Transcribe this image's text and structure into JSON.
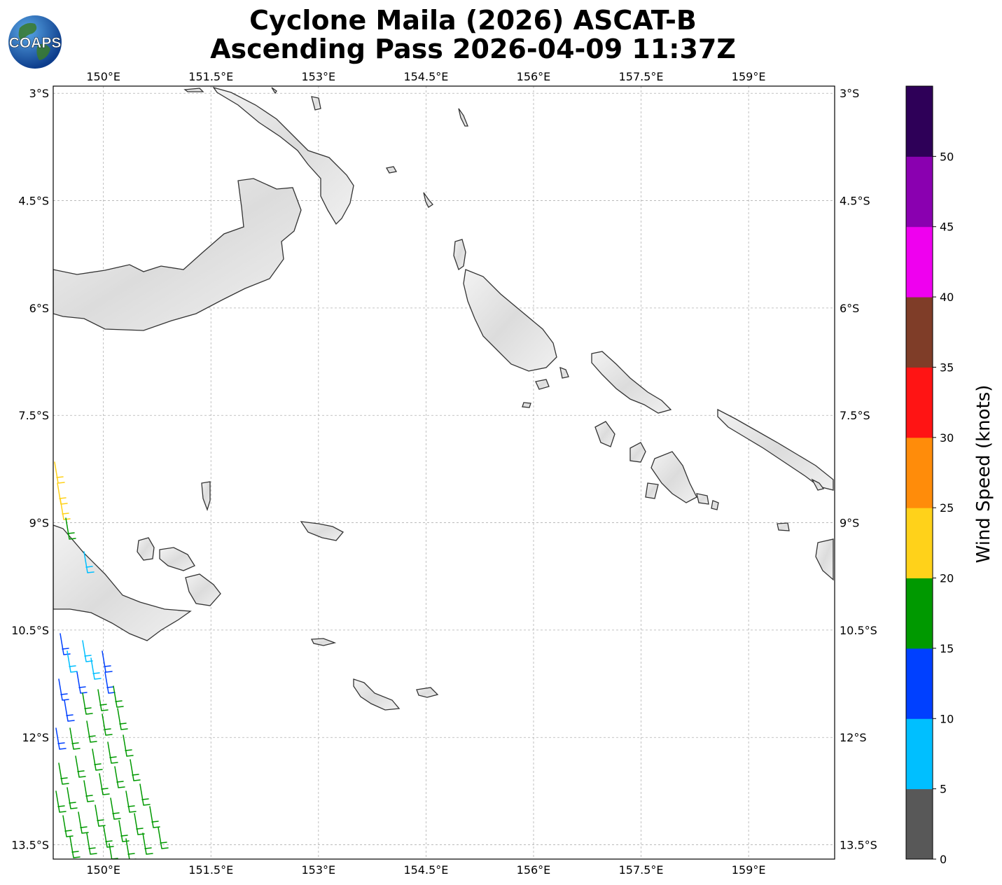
{
  "title_line1": "Cyclone Maila (2026) ASCAT-B",
  "title_line2": "Ascending Pass 2026-04-09 11:37Z",
  "logo_text": "COAPS",
  "map": {
    "lon_range": [
      149.3,
      160.2
    ],
    "lat_range": [
      -13.7,
      -2.9
    ],
    "lon_ticks": [
      "150°E",
      "151.5°E",
      "153°E",
      "154.5°E",
      "156°E",
      "157.5°E",
      "159°E"
    ],
    "lon_tick_values": [
      150,
      151.5,
      153,
      154.5,
      156,
      157.5,
      159
    ],
    "lat_ticks": [
      "3°S",
      "4.5°S",
      "6°S",
      "7.5°S",
      "9°S",
      "10.5°S",
      "12°S",
      "13.5°S"
    ],
    "lat_tick_values": [
      -3,
      -4.5,
      -6,
      -7.5,
      -9,
      -10.5,
      -12,
      -13.5
    ],
    "gridlines": true
  },
  "colorbar": {
    "label": "Wind Speed (knots)",
    "tick_labels": [
      "0",
      "5",
      "10",
      "15",
      "20",
      "25",
      "30",
      "35",
      "40",
      "45",
      "50"
    ],
    "colors": [
      "#585858",
      "#00bfff",
      "#0040ff",
      "#009900",
      "#ffd21a",
      "#ff8c0a",
      "#ff1414",
      "#7f3d28",
      "#ef00ef",
      "#8a00b0",
      "#2e0058"
    ]
  },
  "wind_colors": {
    "5-10": "#00bfff",
    "10-15": "#0040ff",
    "15-20": "#009900",
    "20-25": "#ffd21a"
  }
}
